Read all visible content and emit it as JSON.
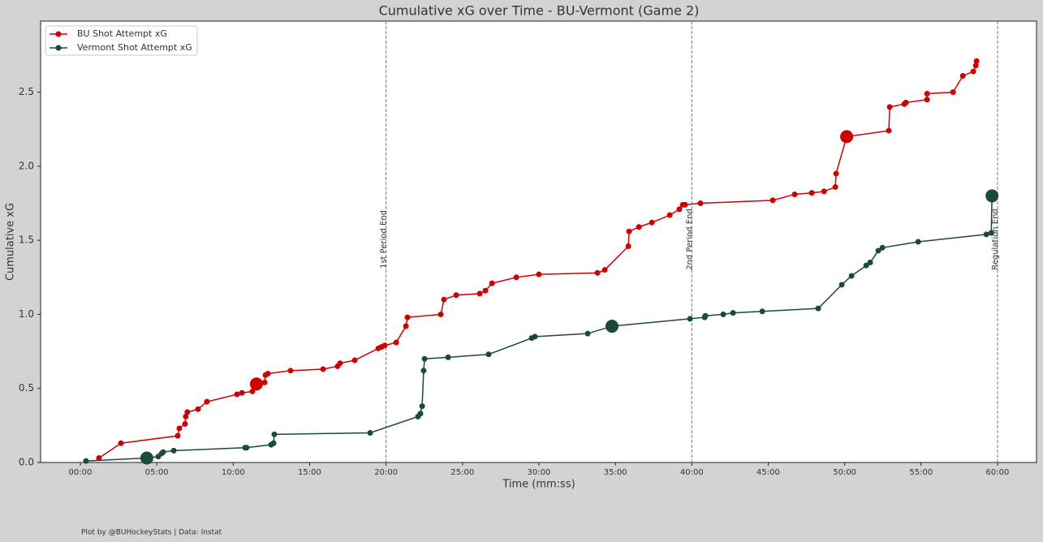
{
  "chart_data": {
    "type": "line",
    "title": "Cumulative xG over Time - BU-Vermont (Game 2)",
    "x_label": "Time (mm:ss)",
    "y_label": "Cumulative xG",
    "footer": "Plot by @BUHockeyStats | Data: Instat",
    "legend": "upper left",
    "xlim": [
      -2.6,
      62.55
    ],
    "ylim": [
      0,
      2.98
    ],
    "xticks": [
      {
        "value": 0,
        "label": "00:00"
      },
      {
        "value": 5,
        "label": "05:00"
      },
      {
        "value": 10,
        "label": "10:00"
      },
      {
        "value": 15,
        "label": "15:00"
      },
      {
        "value": 20,
        "label": "20:00"
      },
      {
        "value": 25,
        "label": "25:00"
      },
      {
        "value": 30,
        "label": "30:00"
      },
      {
        "value": 35,
        "label": "35:00"
      },
      {
        "value": 40,
        "label": "40:00"
      },
      {
        "value": 45,
        "label": "45:00"
      },
      {
        "value": 50,
        "label": "50:00"
      },
      {
        "value": 55,
        "label": "55:00"
      },
      {
        "value": 60,
        "label": "60:00"
      }
    ],
    "yticks": [
      {
        "value": 0,
        "label": "0.0"
      },
      0.5,
      {
        "value": 1,
        "label": "1.0"
      },
      1.5,
      {
        "value": 2,
        "label": "2.0"
      },
      2.5
    ],
    "vlines": [
      {
        "x": 20,
        "label": "1st Period End"
      },
      {
        "x": 40,
        "label": "2nd Period End"
      },
      {
        "x": 60,
        "label": "Regulation End"
      }
    ],
    "series": [
      {
        "name": "BU Shot Attempt xG",
        "color": "#cc0000",
        "large_markers": [
          12,
          52
        ],
        "x": [
          1.22,
          2.66,
          6.37,
          6.48,
          6.85,
          6.9,
          7.0,
          7.7,
          8.28,
          10.25,
          10.57,
          11.26,
          11.52,
          12.06,
          12.11,
          12.27,
          13.75,
          15.88,
          16.83,
          16.99,
          17.95,
          19.49,
          19.7,
          19.91,
          20.66,
          21.3,
          21.4,
          23.58,
          23.79,
          24.59,
          26.13,
          26.5,
          26.93,
          28.52,
          30.0,
          33.83,
          34.31,
          35.85,
          35.9,
          36.54,
          37.39,
          38.56,
          39.19,
          39.41,
          39.56,
          40.57,
          45.3,
          46.73,
          47.85,
          48.65,
          49.39,
          49.44,
          50.13,
          52.89,
          52.95,
          53.9,
          54.01,
          55.39,
          55.39,
          57.09,
          57.73,
          58.42,
          58.58,
          58.63
        ],
        "values": [
          0.03,
          0.13,
          0.18,
          0.23,
          0.26,
          0.31,
          0.34,
          0.36,
          0.41,
          0.46,
          0.47,
          0.48,
          0.53,
          0.54,
          0.59,
          0.6,
          0.62,
          0.63,
          0.65,
          0.67,
          0.69,
          0.77,
          0.78,
          0.79,
          0.81,
          0.92,
          0.98,
          1.0,
          1.1,
          1.13,
          1.14,
          1.16,
          1.21,
          1.25,
          1.27,
          1.28,
          1.3,
          1.46,
          1.56,
          1.59,
          1.62,
          1.67,
          1.71,
          1.74,
          1.74,
          1.75,
          1.77,
          1.81,
          1.82,
          1.83,
          1.86,
          1.95,
          2.2,
          2.24,
          2.4,
          2.42,
          2.43,
          2.45,
          2.49,
          2.5,
          2.61,
          2.64,
          2.68,
          2.71
        ]
      },
      {
        "name": "Vermont Shot Attempt xG",
        "color": "#1a4a38",
        "large_markers": [
          1,
          22,
          39
        ],
        "x": [
          0.37,
          4.35,
          5.1,
          5.31,
          5.41,
          6.11,
          10.78,
          10.88,
          12.48,
          12.64,
          12.69,
          18.96,
          22.09,
          22.25,
          22.36,
          22.46,
          22.52,
          24.06,
          26.71,
          29.53,
          29.74,
          33.19,
          34.78,
          39.88,
          40.84,
          40.89,
          42.06,
          42.7,
          44.61,
          48.27,
          49.81,
          50.45,
          51.41,
          51.67,
          52.2,
          52.47,
          54.81,
          59.27,
          59.59,
          59.64
        ],
        "values": [
          0.01,
          0.03,
          0.04,
          0.06,
          0.07,
          0.08,
          0.1,
          0.1,
          0.12,
          0.13,
          0.19,
          0.2,
          0.31,
          0.33,
          0.38,
          0.62,
          0.7,
          0.71,
          0.73,
          0.84,
          0.85,
          0.87,
          0.92,
          0.97,
          0.98,
          0.99,
          1.0,
          1.01,
          1.02,
          1.04,
          1.2,
          1.26,
          1.33,
          1.35,
          1.43,
          1.45,
          1.49,
          1.54,
          1.55,
          1.8
        ]
      }
    ]
  }
}
